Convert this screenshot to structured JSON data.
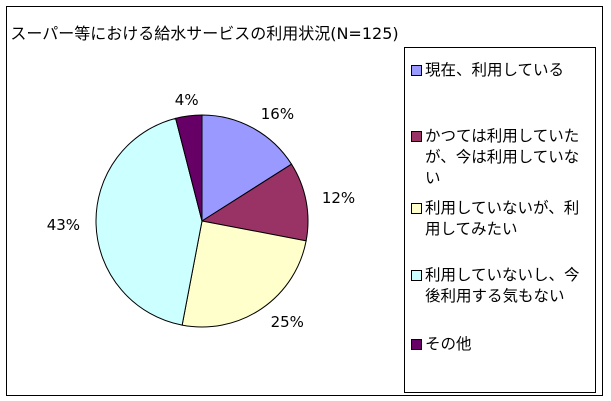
{
  "chart_data": {
    "type": "pie",
    "title": "スーパー等における給水サービスの利用状況(N=125)",
    "categories": [
      "現在、利用している",
      "かつては利用していたが、今は利用していない",
      "利用していないが、利用してみたい",
      "利用していないし、今後利用する気もない",
      "その他"
    ],
    "values": [
      16,
      12,
      25,
      43,
      4
    ],
    "data_labels": [
      "16%",
      "12%",
      "25%",
      "43%",
      "4%"
    ],
    "colors": [
      "#9999ff",
      "#993366",
      "#ffffcc",
      "#ccffff",
      "#660066"
    ],
    "legend_position": "right"
  },
  "legend": {
    "items": [
      {
        "label": "現在、利用している",
        "color": "#9999ff"
      },
      {
        "label": "かつては利用していたが、今は利用していない",
        "color": "#993366"
      },
      {
        "label": "利用していないが、利用してみたい",
        "color": "#ffffcc"
      },
      {
        "label": "利用していないし、今後利用する気もない",
        "color": "#ccffff"
      },
      {
        "label": "その他",
        "color": "#660066"
      }
    ]
  }
}
